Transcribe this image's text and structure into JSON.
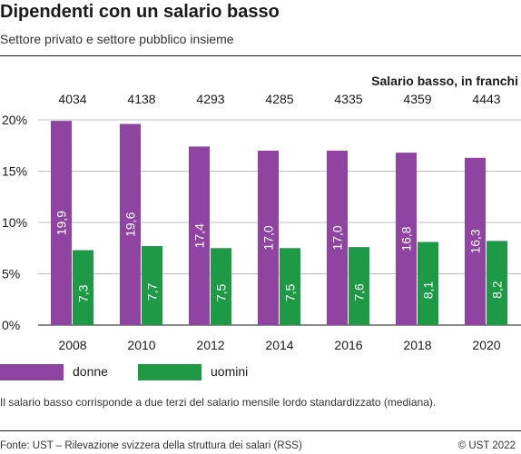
{
  "header": {
    "title": "Dipendenti con un salario basso",
    "subtitle": "Settore privato e settore pubblico insieme"
  },
  "chart_data": {
    "type": "bar",
    "categories": [
      "2008",
      "2010",
      "2012",
      "2014",
      "2016",
      "2018",
      "2020"
    ],
    "series": [
      {
        "name": "donne",
        "values": [
          19.9,
          19.6,
          17.4,
          17.0,
          17.0,
          16.8,
          16.3
        ],
        "labels": [
          "19,9",
          "19,6",
          "17,4",
          "17,0",
          "17,0",
          "16,8",
          "16,3"
        ]
      },
      {
        "name": "uomini",
        "values": [
          7.3,
          7.7,
          7.5,
          7.5,
          7.6,
          8.1,
          8.2
        ],
        "labels": [
          "7,3",
          "7,7",
          "7,5",
          "7,5",
          "7,6",
          "8,1",
          "8,2"
        ]
      }
    ],
    "top_row": {
      "label": "Salario basso, in franchi",
      "values": [
        "4034",
        "4138",
        "4293",
        "4285",
        "4335",
        "4359",
        "4443"
      ]
    },
    "ylim": [
      0,
      20
    ],
    "yticks": [
      0,
      5,
      10,
      15,
      20
    ],
    "ytick_labels": [
      "0%",
      "5%",
      "10%",
      "15%",
      "20%"
    ],
    "grid": true,
    "legend_position": "bottom",
    "colors": {
      "donne": "#8e44a0",
      "uomini": "#1e9a46"
    }
  },
  "legend": {
    "items": [
      {
        "label": "donne",
        "color": "#8e44a0"
      },
      {
        "label": "uomini",
        "color": "#1e9a46"
      }
    ]
  },
  "footer": {
    "note": "Il salario basso corrisponde a due terzi del salario mensile lordo standardizzato (mediana).",
    "source": "Fonte: UST – Rilevazione svizzera della struttura dei salari (RSS)",
    "copyright": "© UST 2022"
  }
}
